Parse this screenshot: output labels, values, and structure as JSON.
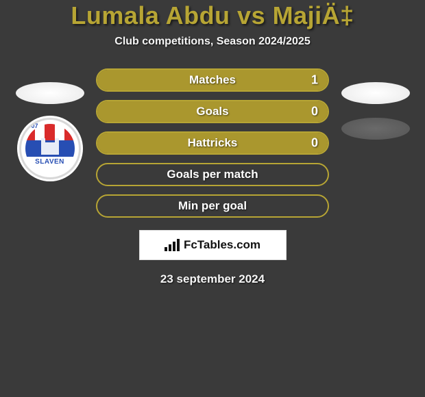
{
  "title": "Lumala Abdu vs MajiÄ‡",
  "subtitle": "Club competitions, Season 2024/2025",
  "crest": {
    "year": "1907",
    "name": "SLAVEN"
  },
  "colors": {
    "olive_border": "#b7a534",
    "olive_fill": "#aa972e",
    "background": "#3a3a3a",
    "white": "#ffffff",
    "grey": "#606060"
  },
  "left_badges": [
    {
      "kind": "ellipse",
      "color": "white"
    },
    {
      "kind": "crest"
    }
  ],
  "right_badges": [
    {
      "kind": "ellipse",
      "color": "white"
    },
    {
      "kind": "ellipse",
      "color": "grey"
    }
  ],
  "stats": [
    {
      "label": "Matches",
      "value": "1",
      "show_value": true,
      "fill": true
    },
    {
      "label": "Goals",
      "value": "0",
      "show_value": true,
      "fill": true
    },
    {
      "label": "Hattricks",
      "value": "0",
      "show_value": true,
      "fill": true
    },
    {
      "label": "Goals per match",
      "value": "",
      "show_value": false,
      "fill": false
    },
    {
      "label": "Min per goal",
      "value": "",
      "show_value": false,
      "fill": false
    }
  ],
  "promo": {
    "label": "FcTables.com"
  },
  "date": "23 september 2024"
}
